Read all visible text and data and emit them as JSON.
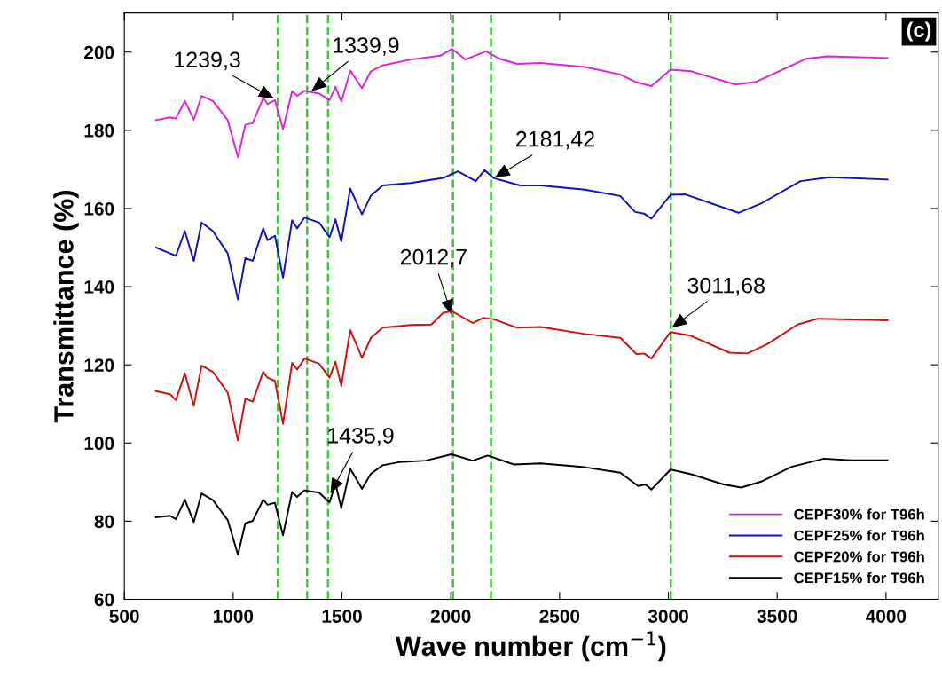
{
  "chart_data": {
    "type": "line",
    "xlabel": "Wave number (cm$^{−1}$)",
    "ylabel": "Transmittance (%)",
    "xlim": [
      500,
      4240
    ],
    "xticks": [
      500,
      1000,
      1500,
      2000,
      2500,
      3000,
      3500,
      4000
    ],
    "ylim": [
      60,
      210
    ],
    "yticks": [
      60,
      80,
      100,
      120,
      140,
      160,
      180,
      200
    ],
    "grid": false,
    "legend": "bottom right",
    "marker": "none",
    "line_style": "solid",
    "series": [
      {
        "name": "CEPF30% for T96h",
        "color": "#e020e0",
        "x": [
          645,
          710,
          737,
          778,
          819,
          855,
          907,
          975,
          1022,
          1056,
          1090,
          1138,
          1158,
          1192,
          1229,
          1271,
          1294,
          1328,
          1395,
          1443,
          1470,
          1497,
          1538,
          1592,
          1633,
          1687,
          1816,
          1952,
          2006,
          2067,
          2162,
          2223,
          2305,
          2413,
          2616,
          2779,
          2847,
          2922,
          3010,
          3105,
          3308,
          3403,
          3634,
          3729,
          4007
        ],
        "values": [
          182.6,
          183.3,
          183.0,
          187.5,
          182.7,
          188.8,
          187.5,
          182.6,
          173.1,
          181.4,
          181.8,
          188.3,
          186.7,
          187.7,
          180.3,
          190.0,
          188.8,
          190.1,
          189.4,
          187.7,
          191.1,
          187.3,
          195.3,
          190.8,
          195.1,
          196.6,
          198.1,
          199.1,
          200.8,
          198.1,
          200.2,
          198.3,
          197.0,
          197.2,
          196.2,
          194.3,
          192.4,
          191.3,
          195.5,
          195.1,
          191.7,
          192.4,
          198.3,
          198.9,
          198.5
        ]
      },
      {
        "name": "CEPF25% for T96h",
        "color": "#1010c0",
        "x": [
          645,
          710,
          737,
          778,
          819,
          855,
          907,
          975,
          1022,
          1056,
          1090,
          1138,
          1158,
          1192,
          1229,
          1271,
          1294,
          1328,
          1395,
          1443,
          1470,
          1497,
          1538,
          1592,
          1633,
          1687,
          1816,
          1965,
          2033,
          2115,
          2155,
          2196,
          2318,
          2413,
          2616,
          2779,
          2847,
          2888,
          2922,
          3010,
          3078,
          3322,
          3430,
          3607,
          3743,
          4007
        ],
        "values": [
          150.0,
          148.5,
          147.9,
          154.2,
          146.6,
          156.4,
          154.2,
          148.5,
          136.7,
          147.3,
          146.6,
          154.9,
          151.9,
          153.0,
          142.3,
          157.0,
          154.9,
          157.7,
          156.4,
          152.6,
          157.2,
          151.5,
          165.1,
          158.5,
          163.3,
          165.9,
          166.5,
          167.8,
          169.5,
          167.0,
          169.8,
          167.8,
          165.9,
          165.9,
          164.8,
          163.2,
          159.1,
          158.7,
          157.4,
          163.5,
          163.6,
          158.9,
          161.4,
          167.0,
          168.0,
          167.4
        ]
      },
      {
        "name": "CEPF20% for T96h",
        "color": "#d01010",
        "x": [
          645,
          710,
          737,
          778,
          819,
          855,
          907,
          975,
          1022,
          1056,
          1090,
          1138,
          1158,
          1192,
          1229,
          1271,
          1294,
          1328,
          1395,
          1443,
          1470,
          1497,
          1538,
          1592,
          1633,
          1687,
          1816,
          1911,
          1965,
          2006,
          2101,
          2148,
          2196,
          2305,
          2413,
          2616,
          2779,
          2854,
          2888,
          2922,
          3010,
          3105,
          3281,
          3363,
          3458,
          3593,
          3688,
          3837,
          4007
        ],
        "values": [
          113.3,
          112.5,
          111.0,
          117.8,
          109.5,
          119.8,
          118.2,
          112.9,
          100.6,
          111.4,
          110.6,
          118.2,
          116.7,
          115.9,
          104.9,
          120.5,
          118.8,
          121.6,
          120.3,
          116.7,
          120.8,
          114.6,
          128.9,
          121.8,
          126.9,
          129.5,
          130.2,
          130.3,
          133.3,
          133.7,
          130.7,
          132.0,
          131.7,
          129.5,
          129.7,
          127.9,
          126.9,
          122.7,
          122.9,
          121.6,
          128.4,
          127.4,
          123.1,
          122.9,
          125.4,
          130.3,
          131.8,
          131.6,
          131.4
        ]
      },
      {
        "name": "CEPF15% for T96h",
        "color": "#000000",
        "x": [
          645,
          710,
          737,
          778,
          819,
          855,
          907,
          975,
          1022,
          1056,
          1090,
          1138,
          1158,
          1192,
          1229,
          1271,
          1294,
          1328,
          1395,
          1443,
          1470,
          1497,
          1538,
          1592,
          1633,
          1687,
          1762,
          1884,
          2003,
          2101,
          2169,
          2291,
          2413,
          2616,
          2779,
          2861,
          2895,
          2922,
          3010,
          3105,
          3254,
          3335,
          3430,
          3566,
          3715,
          3837,
          4007
        ],
        "values": [
          81.0,
          81.4,
          80.5,
          85.5,
          79.8,
          87.1,
          85.4,
          80.3,
          71.4,
          79.5,
          80.1,
          85.5,
          84.2,
          84.7,
          76.4,
          87.5,
          86.2,
          87.9,
          87.3,
          84.8,
          89.6,
          83.3,
          93.4,
          88.3,
          92.1,
          94.3,
          95.1,
          95.5,
          97.1,
          95.5,
          96.8,
          94.5,
          94.8,
          93.8,
          92.4,
          89.0,
          89.4,
          88.1,
          93.2,
          92.0,
          89.4,
          88.6,
          90.2,
          93.9,
          96.0,
          95.6,
          95.6
        ]
      }
    ],
    "ref_lines": [
      {
        "axis": "x",
        "value": 1205,
        "color": "#33cc33",
        "line_style": "dashed"
      },
      {
        "axis": "x",
        "value": 1340,
        "color": "#33cc33",
        "line_style": "dashed"
      },
      {
        "axis": "x",
        "value": 1436,
        "color": "#33cc33",
        "line_style": "dashed"
      },
      {
        "axis": "x",
        "value": 2010,
        "color": "#33cc33",
        "line_style": "dashed"
      },
      {
        "axis": "x",
        "value": 2185,
        "color": "#33cc33",
        "line_style": "dashed"
      },
      {
        "axis": "x",
        "value": 3011,
        "color": "#33cc33",
        "line_style": "dashed"
      }
    ],
    "annotations": [
      "(c)",
      {
        "text": "1239,3",
        "x": 1192,
        "y": 188
      },
      {
        "text": "1339,9",
        "x": 1355,
        "y": 189.8
      },
      {
        "text": "2181,42",
        "x": 2197,
        "y": 167.7
      },
      {
        "text": "2012,7",
        "x": 2006,
        "y": 132.5
      },
      {
        "text": "1435,9",
        "x": 1444,
        "y": 86.8
      },
      {
        "text": "3011,68",
        "x": 3011,
        "y": 129.3
      }
    ]
  }
}
